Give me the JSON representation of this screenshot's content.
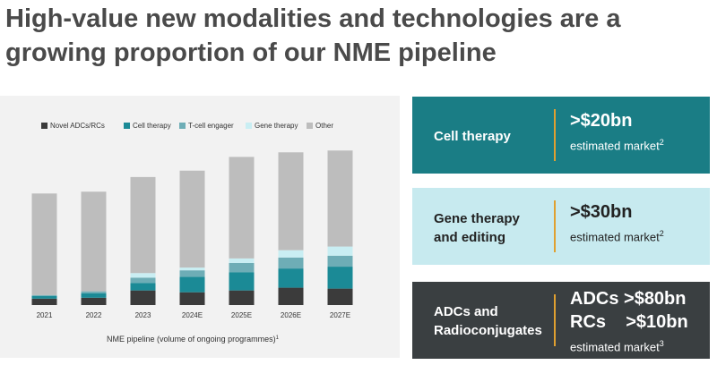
{
  "title": "High-value new modalities and technologies are a growing proportion of our NME pipeline",
  "chart_data": {
    "type": "bar",
    "stacked": true,
    "categories": [
      "2021",
      "2022",
      "2023",
      "2024E",
      "2025E",
      "2026E",
      "2027E"
    ],
    "series": [
      {
        "name": "Novel ADCs/RCs",
        "color": "#3b3b3b",
        "values": [
          7,
          8,
          16,
          14,
          16,
          19,
          18
        ]
      },
      {
        "name": "Cell therapy",
        "color": "#1b8a96",
        "values": [
          3,
          5,
          8,
          17,
          20,
          21,
          24
        ]
      },
      {
        "name": "T-cell engager",
        "color": "#6eadb6",
        "values": [
          1,
          2,
          6,
          7,
          10,
          12,
          12
        ]
      },
      {
        "name": "Gene therapy",
        "color": "#c9eef3",
        "values": [
          0,
          0,
          5,
          3,
          5,
          8,
          10
        ]
      },
      {
        "name": "Other",
        "color": "#bdbdbd",
        "values": [
          111,
          109,
          105,
          106,
          111,
          107,
          105
        ]
      }
    ],
    "ylim": [
      0,
      180
    ],
    "xlabel": "NME pipeline (volume of ongoing programmes)",
    "xlabel_sup": "1"
  },
  "panels": [
    {
      "label": "Cell therapy",
      "lines": [
        ">$20bn"
      ],
      "note": "estimated market",
      "sup": "2"
    },
    {
      "label": "Gene therapy and editing",
      "lines": [
        ">$30bn"
      ],
      "note": "estimated market",
      "sup": "2"
    },
    {
      "label": "ADCs and Radioconjugates",
      "lines": [
        "ADCs >$80bn",
        "RCs    >$10bn"
      ],
      "note": "estimated market",
      "sup": "3"
    }
  ]
}
